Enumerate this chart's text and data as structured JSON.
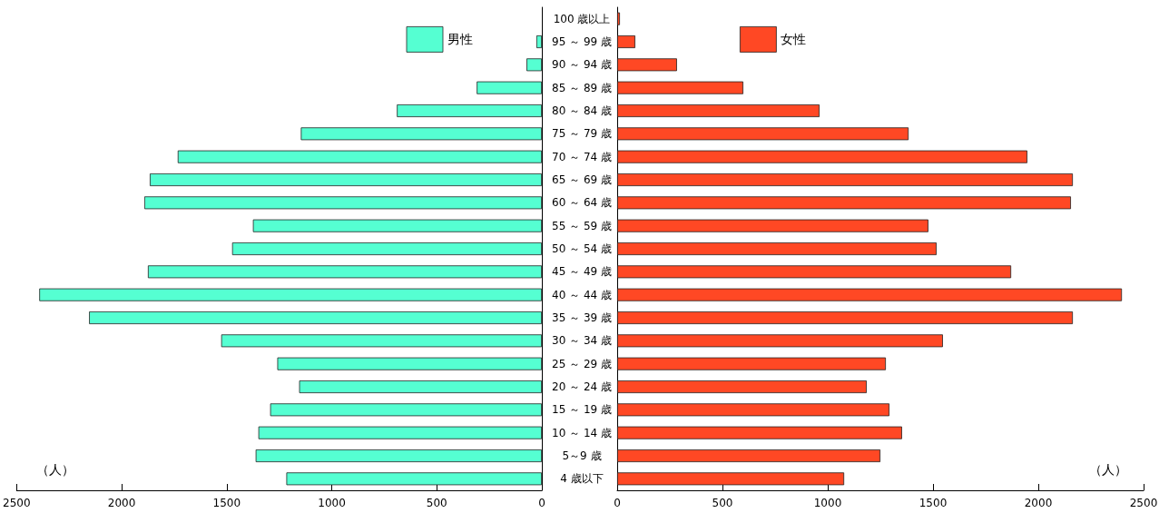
{
  "chart_data": [
    {
      "type": "bar",
      "orientation": "horizontal",
      "xlabel": "（人）",
      "categories": [
        "100 歳以上",
        "95 ～ 99 歳",
        "90 ～ 94 歳",
        "85 ～ 89 歳",
        "80 ～ 84 歳",
        "75 ～ 79 歳",
        "70 ～ 74 歳",
        "65 ～ 69 歳",
        "60 ～ 64 歳",
        "55 ～ 59 歳",
        "50 ～ 54 歳",
        "45 ～ 49 歳",
        "40 ～ 44 歳",
        "35 ～ 39 歳",
        "30 ～ 34 歳",
        "25 ～ 29 歳",
        "20 ～ 24 歳",
        "15 ～ 19 歳",
        "10 ～ 14 歳",
        "5～9 歳",
        "4 歳以下"
      ],
      "series": [
        {
          "name": "男性",
          "color": "#55ffd2",
          "values": [
            null,
            26,
            73,
            310,
            690,
            1147,
            1733,
            1866,
            1892,
            1375,
            1474,
            1875,
            2392,
            2155,
            1526,
            1259,
            1155,
            1293,
            1349,
            1362,
            1216
          ]
        }
      ],
      "xlim": [
        2500,
        0
      ],
      "xticks": [
        2500,
        2000,
        1500,
        1000,
        500,
        0
      ],
      "legend": "top right",
      "grid": false
    },
    {
      "type": "bar",
      "orientation": "horizontal",
      "xlabel": "（人）",
      "categories": [
        null,
        null,
        null,
        null,
        null,
        null,
        null,
        null,
        null,
        null,
        null,
        null,
        null,
        null,
        null,
        null,
        null,
        null,
        null,
        null,
        null
      ],
      "series": [
        {
          "name": "女性",
          "color": "#ff4824",
          "values": [
            13,
            86,
            284,
            599,
            961,
            1384,
            1948,
            2164,
            2155,
            1478,
            1517,
            1871,
            2397,
            2164,
            1547,
            1276,
            1185,
            1293,
            1353,
            1250,
            1078
          ]
        }
      ],
      "xlim": [
        0,
        2500
      ],
      "xticks": [
        0,
        500,
        1000,
        1500,
        2000,
        2500
      ],
      "legend": "top left",
      "grid": false
    }
  ]
}
